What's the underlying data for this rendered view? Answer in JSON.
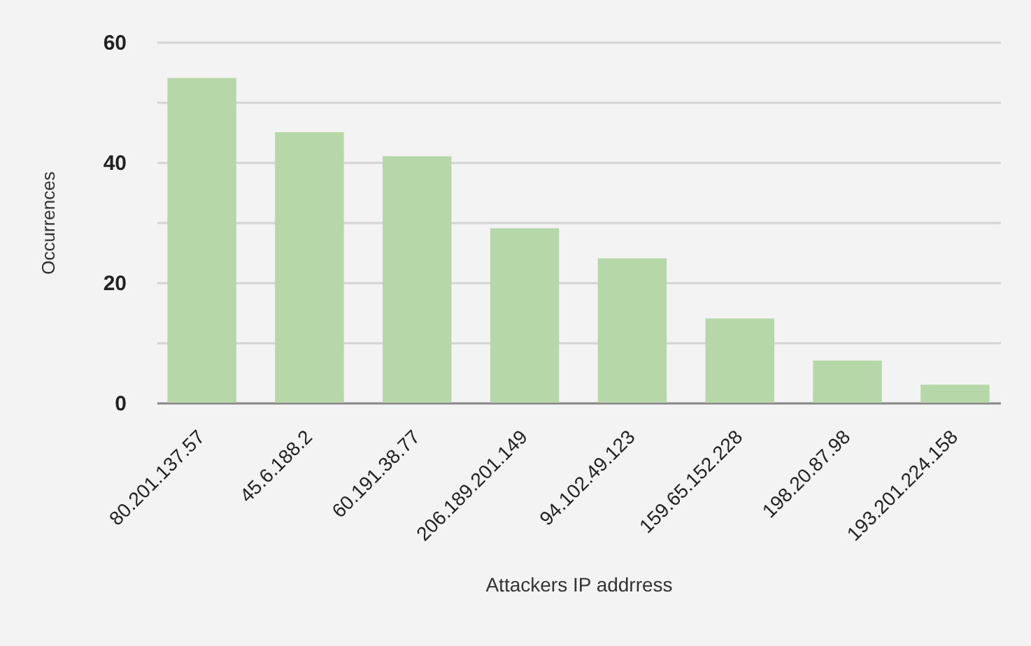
{
  "chart_data": {
    "type": "bar",
    "xlabel": "Attackers IP addrress",
    "ylabel": "Occurrences",
    "categories": [
      "80.201.137.57",
      "45.6.188.2",
      "60.191.38.77",
      "206.189.201.149",
      "94.102.49.123",
      "159.65.152.228",
      "198.20.87.98",
      "193.201.224.158"
    ],
    "values": [
      54,
      45,
      41,
      29,
      24,
      14,
      7,
      3
    ],
    "color": "#b6d7a8",
    "ylim": [
      0,
      60
    ],
    "yticks": [
      0,
      {
        "value": 10,
        "label": null
      },
      20,
      {
        "value": 30,
        "label": null
      },
      40,
      {
        "value": 50,
        "label": null
      },
      60
    ],
    "grid": true
  }
}
